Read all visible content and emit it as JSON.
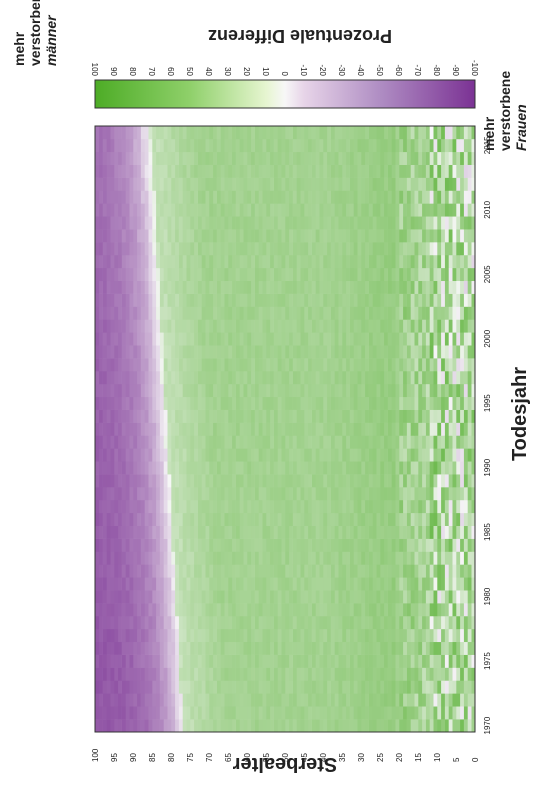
{
  "chart_data": {
    "type": "heatmap",
    "xlabel": "Sterbealter",
    "ylabel": "Todesjahr",
    "x_ticks": [
      "100",
      "95",
      "90",
      "85",
      "80",
      "75",
      "70",
      "65",
      "60",
      "55",
      "50",
      "45",
      "40",
      "35",
      "30",
      "25",
      "20",
      "15",
      "10",
      "5",
      "0"
    ],
    "y_ticks": [
      "1970",
      "1975",
      "1980",
      "1985",
      "1990",
      "1995",
      "2000",
      "2005",
      "2010",
      "2015"
    ],
    "x_range": [
      0,
      100
    ],
    "y_range": [
      1970,
      2017
    ],
    "legend_title": "Prozentuale Differenz",
    "legend_ticks": [
      "100",
      "90",
      "80",
      "70",
      "60",
      "50",
      "40",
      "30",
      "20",
      "10",
      "0",
      "-10",
      "-20",
      "-30",
      "-40",
      "-50",
      "-60",
      "-70",
      "-80",
      "-90",
      "-100"
    ],
    "legend_range": [
      100,
      -100
    ],
    "side_labels": {
      "men": [
        "mehr",
        "verstorbene",
        "männer"
      ],
      "women": [
        "mehr",
        "verstorbene",
        "Frauen"
      ]
    },
    "colors": {
      "positive": "#4dac26",
      "neutral": "#f7f7f7",
      "negative": "#7b3294"
    },
    "pattern": {
      "description_values": [
        {
          "age_range": [
            85,
            100
          ],
          "year": 1970,
          "value": -75
        },
        {
          "age_range": [
            78,
            85
          ],
          "year": 1970,
          "value": -30
        },
        {
          "age_range": [
            76,
            78
          ],
          "year": 1970,
          "value": 0
        },
        {
          "age_range": [
            20,
            75
          ],
          "year": 1970,
          "value": 40
        },
        {
          "age_range": [
            0,
            20
          ],
          "year": 1970,
          "value": 20
        },
        {
          "age_range": [
            90,
            100
          ],
          "year": 2016,
          "value": -65
        },
        {
          "age_range": [
            86,
            90
          ],
          "year": 2016,
          "value": -25
        },
        {
          "age_range": [
            84,
            86
          ],
          "year": 2016,
          "value": 0
        },
        {
          "age_range": [
            20,
            83
          ],
          "year": 2016,
          "value": 35
        },
        {
          "age_range": [
            0,
            20
          ],
          "year": 2016,
          "value": 10
        }
      ]
    }
  }
}
